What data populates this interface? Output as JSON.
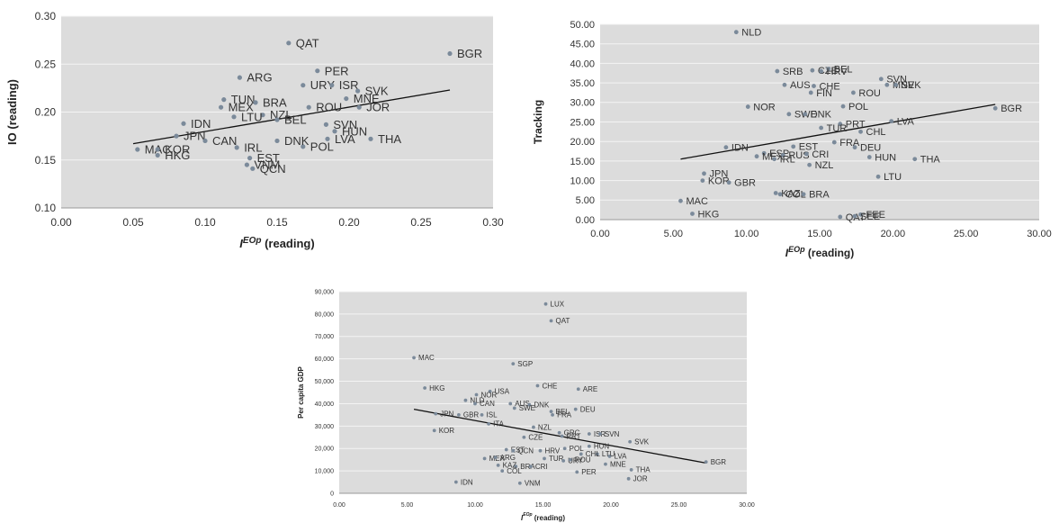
{
  "chart_data": [
    {
      "type": "scatter",
      "xlabel": "I^EOp (reading)",
      "ylabel": "IO (reading)",
      "xlim": [
        0,
        0.3
      ],
      "ylim": [
        0.1,
        0.3
      ],
      "xticks": [
        "0.00",
        "0.05",
        "0.10",
        "0.15",
        "0.20",
        "0.25",
        "0.30"
      ],
      "yticks": [
        "0.10",
        "0.15",
        "0.20",
        "0.25",
        "0.30"
      ],
      "grid": true,
      "trend": [
        [
          0.05,
          0.167
        ],
        [
          0.27,
          0.223
        ]
      ],
      "points": [
        {
          "label": "QAT",
          "x": 0.158,
          "y": 0.272
        },
        {
          "label": "BGR",
          "x": 0.27,
          "y": 0.261
        },
        {
          "label": "ARG",
          "x": 0.124,
          "y": 0.236
        },
        {
          "label": "PER",
          "x": 0.178,
          "y": 0.243
        },
        {
          "label": "URY",
          "x": 0.168,
          "y": 0.228
        },
        {
          "label": "ISR",
          "x": 0.188,
          "y": 0.228
        },
        {
          "label": "SVK",
          "x": 0.206,
          "y": 0.222
        },
        {
          "label": "MNE",
          "x": 0.198,
          "y": 0.214
        },
        {
          "label": "JOR",
          "x": 0.207,
          "y": 0.205
        },
        {
          "label": "TUN",
          "x": 0.113,
          "y": 0.213
        },
        {
          "label": "BRA",
          "x": 0.135,
          "y": 0.21
        },
        {
          "label": "MEX",
          "x": 0.111,
          "y": 0.205
        },
        {
          "label": "ROU",
          "x": 0.172,
          "y": 0.205
        },
        {
          "label": "NZL",
          "x": 0.14,
          "y": 0.197
        },
        {
          "label": "BEL",
          "x": 0.15,
          "y": 0.192
        },
        {
          "label": "SVN",
          "x": 0.184,
          "y": 0.187
        },
        {
          "label": "IDN",
          "x": 0.085,
          "y": 0.188
        },
        {
          "label": "LTU",
          "x": 0.12,
          "y": 0.195
        },
        {
          "label": "HUN",
          "x": 0.19,
          "y": 0.18
        },
        {
          "label": "LVA",
          "x": 0.185,
          "y": 0.172
        },
        {
          "label": "THA",
          "x": 0.215,
          "y": 0.172
        },
        {
          "label": "POL",
          "x": 0.168,
          "y": 0.164
        },
        {
          "label": "JPN",
          "x": 0.08,
          "y": 0.175
        },
        {
          "label": "CAN",
          "x": 0.1,
          "y": 0.17
        },
        {
          "label": "IRL",
          "x": 0.122,
          "y": 0.163
        },
        {
          "label": "DNK",
          "x": 0.15,
          "y": 0.17
        },
        {
          "label": "EST",
          "x": 0.131,
          "y": 0.152
        },
        {
          "label": "VNM",
          "x": 0.129,
          "y": 0.145
        },
        {
          "label": "QCN",
          "x": 0.133,
          "y": 0.141
        },
        {
          "label": "MAC",
          "x": 0.053,
          "y": 0.161
        },
        {
          "label": "KOR",
          "x": 0.067,
          "y": 0.161
        },
        {
          "label": "HKG",
          "x": 0.067,
          "y": 0.155
        }
      ]
    },
    {
      "type": "scatter",
      "xlabel": "I^EOp (reading)",
      "ylabel": "Tracking",
      "xlim": [
        0,
        30
      ],
      "ylim": [
        0,
        50
      ],
      "xticks": [
        "0.00",
        "5.00",
        "10.00",
        "15.00",
        "20.00",
        "25.00",
        "30.00"
      ],
      "yticks": [
        "0.00",
        "5.00",
        "10.00",
        "15.00",
        "20.00",
        "25.00",
        "30.00",
        "35.00",
        "40.00",
        "45.00",
        "50.00"
      ],
      "grid": true,
      "trend": [
        [
          5.5,
          15.5
        ],
        [
          27,
          29.5
        ]
      ],
      "points": [
        {
          "label": "NLD",
          "x": 9.3,
          "y": 48.0
        },
        {
          "label": "SRB",
          "x": 12.1,
          "y": 38.0
        },
        {
          "label": "CZE",
          "x": 14.5,
          "y": 38.2
        },
        {
          "label": "BEL",
          "x": 15.6,
          "y": 38.6
        },
        {
          "label": "HRV",
          "x": 15.1,
          "y": 38.0
        },
        {
          "label": "SVN",
          "x": 19.2,
          "y": 36.0
        },
        {
          "label": "MNE",
          "x": 19.6,
          "y": 34.5
        },
        {
          "label": "SVK",
          "x": 20.2,
          "y": 34.5
        },
        {
          "label": "AUS",
          "x": 12.6,
          "y": 34.5
        },
        {
          "label": "CHE",
          "x": 14.6,
          "y": 34.2
        },
        {
          "label": "FIN",
          "x": 14.4,
          "y": 32.5
        },
        {
          "label": "ROU",
          "x": 17.3,
          "y": 32.5
        },
        {
          "label": "NOR",
          "x": 10.1,
          "y": 28.9
        },
        {
          "label": "SWE",
          "x": 12.9,
          "y": 27.0
        },
        {
          "label": "DNK",
          "x": 14.0,
          "y": 27.0
        },
        {
          "label": "POL",
          "x": 16.6,
          "y": 29.0
        },
        {
          "label": "PRT",
          "x": 16.4,
          "y": 24.5
        },
        {
          "label": "TUR",
          "x": 15.1,
          "y": 23.5
        },
        {
          "label": "LVA",
          "x": 19.9,
          "y": 25.2
        },
        {
          "label": "CHL",
          "x": 17.8,
          "y": 22.5
        },
        {
          "label": "BGR",
          "x": 27.0,
          "y": 28.5
        },
        {
          "label": "IDN",
          "x": 8.6,
          "y": 18.5
        },
        {
          "label": "EST",
          "x": 13.2,
          "y": 18.7
        },
        {
          "label": "ESP",
          "x": 11.2,
          "y": 17.0
        },
        {
          "label": "FRA",
          "x": 16.0,
          "y": 19.8
        },
        {
          "label": "DEU",
          "x": 17.4,
          "y": 18.5
        },
        {
          "label": "MEX",
          "x": 10.7,
          "y": 16.2
        },
        {
          "label": "RUS",
          "x": 12.5,
          "y": 16.5
        },
        {
          "label": "CRI",
          "x": 14.1,
          "y": 16.8
        },
        {
          "label": "IRL",
          "x": 11.9,
          "y": 15.5
        },
        {
          "label": "HUN",
          "x": 18.4,
          "y": 16.0
        },
        {
          "label": "THA",
          "x": 21.5,
          "y": 15.5
        },
        {
          "label": "NZL",
          "x": 14.3,
          "y": 14.0
        },
        {
          "label": "JPN",
          "x": 7.1,
          "y": 11.8
        },
        {
          "label": "KOR",
          "x": 7.0,
          "y": 10.0
        },
        {
          "label": "GBR",
          "x": 8.8,
          "y": 9.5
        },
        {
          "label": "LTU",
          "x": 19.0,
          "y": 11.0
        },
        {
          "label": "KAZ",
          "x": 12.0,
          "y": 6.8
        },
        {
          "label": "COL",
          "x": 12.3,
          "y": 6.5
        },
        {
          "label": "BRA",
          "x": 13.9,
          "y": 6.5
        },
        {
          "label": "MAC",
          "x": 5.5,
          "y": 4.8
        },
        {
          "label": "HKG",
          "x": 6.3,
          "y": 1.5
        },
        {
          "label": "QAT",
          "x": 16.4,
          "y": 0.7
        },
        {
          "label": "FEE",
          "x": 17.8,
          "y": 1.3
        },
        {
          "label": "SEE",
          "x": 17.4,
          "y": 0.9
        }
      ]
    },
    {
      "type": "scatter",
      "xlabel": "I^EOp (reading)",
      "ylabel": "Per capita GDP",
      "xlim": [
        0,
        30
      ],
      "ylim": [
        0,
        90000
      ],
      "xticks": [
        "0.00",
        "5.00",
        "10.00",
        "15.00",
        "20.00",
        "25.00",
        "30.00"
      ],
      "yticks": [
        "0",
        "10,000",
        "20,000",
        "30,000",
        "40,000",
        "50,000",
        "60,000",
        "70,000",
        "80,000",
        "90,000"
      ],
      "grid": true,
      "trend": [
        [
          5.5,
          37500
        ],
        [
          27,
          13500
        ]
      ],
      "points": [
        {
          "label": "LUX",
          "x": 15.2,
          "y": 84500
        },
        {
          "label": "QAT",
          "x": 15.6,
          "y": 77000
        },
        {
          "label": "MAC",
          "x": 5.5,
          "y": 60500
        },
        {
          "label": "SGP",
          "x": 12.8,
          "y": 57800
        },
        {
          "label": "HKG",
          "x": 6.3,
          "y": 47000
        },
        {
          "label": "CHE",
          "x": 14.6,
          "y": 48000
        },
        {
          "label": "ARE",
          "x": 17.6,
          "y": 46500
        },
        {
          "label": "USA",
          "x": 11.1,
          "y": 45500
        },
        {
          "label": "NOR",
          "x": 10.1,
          "y": 44000
        },
        {
          "label": "NLD",
          "x": 9.3,
          "y": 41500
        },
        {
          "label": "CAN",
          "x": 10.0,
          "y": 40000
        },
        {
          "label": "AUS",
          "x": 12.6,
          "y": 40000
        },
        {
          "label": "DNK",
          "x": 14.0,
          "y": 39500
        },
        {
          "label": "SWE",
          "x": 12.9,
          "y": 38000
        },
        {
          "label": "BEL",
          "x": 15.6,
          "y": 36500
        },
        {
          "label": "DEU",
          "x": 17.4,
          "y": 37500
        },
        {
          "label": "FRA",
          "x": 15.7,
          "y": 35000
        },
        {
          "label": "JPN",
          "x": 7.1,
          "y": 35500
        },
        {
          "label": "GBR",
          "x": 8.8,
          "y": 35000
        },
        {
          "label": "ISL",
          "x": 10.5,
          "y": 35000
        },
        {
          "label": "ITA",
          "x": 11.0,
          "y": 31000
        },
        {
          "label": "NZL",
          "x": 14.3,
          "y": 29500
        },
        {
          "label": "KOR",
          "x": 7.0,
          "y": 28000
        },
        {
          "label": "GRC",
          "x": 16.2,
          "y": 27000
        },
        {
          "label": "PRT",
          "x": 16.4,
          "y": 25500
        },
        {
          "label": "ISR",
          "x": 18.4,
          "y": 26500
        },
        {
          "label": "SVN",
          "x": 19.2,
          "y": 26500
        },
        {
          "label": "CZE",
          "x": 13.6,
          "y": 25000
        },
        {
          "label": "SVK",
          "x": 21.4,
          "y": 23000
        },
        {
          "label": "HUN",
          "x": 18.4,
          "y": 21000
        },
        {
          "label": "POL",
          "x": 16.6,
          "y": 20000
        },
        {
          "label": "EST",
          "x": 12.3,
          "y": 19500
        },
        {
          "label": "LVA",
          "x": 19.9,
          "y": 16500
        },
        {
          "label": "LTU",
          "x": 19.0,
          "y": 17500
        },
        {
          "label": "CHL",
          "x": 17.8,
          "y": 17500
        },
        {
          "label": "HRV",
          "x": 14.8,
          "y": 19000
        },
        {
          "label": "QCN",
          "x": 12.8,
          "y": 19000
        },
        {
          "label": "TUR",
          "x": 15.1,
          "y": 15500
        },
        {
          "label": "URY",
          "x": 16.5,
          "y": 14500
        },
        {
          "label": "ROU",
          "x": 17.0,
          "y": 15000
        },
        {
          "label": "MNE",
          "x": 19.6,
          "y": 13000
        },
        {
          "label": "MEX",
          "x": 10.7,
          "y": 15500
        },
        {
          "label": "ARG",
          "x": 11.5,
          "y": 16000
        },
        {
          "label": "BRA",
          "x": 13.0,
          "y": 12000
        },
        {
          "label": "KAZ",
          "x": 11.7,
          "y": 12500
        },
        {
          "label": "CRI",
          "x": 14.1,
          "y": 12000
        },
        {
          "label": "COL",
          "x": 12.0,
          "y": 10000
        },
        {
          "label": "PER",
          "x": 17.5,
          "y": 9500
        },
        {
          "label": "THA",
          "x": 21.5,
          "y": 10500
        },
        {
          "label": "JOR",
          "x": 21.3,
          "y": 6500
        },
        {
          "label": "BGR",
          "x": 27.0,
          "y": 14000
        },
        {
          "label": "IDN",
          "x": 8.6,
          "y": 5000
        },
        {
          "label": "VNM",
          "x": 13.3,
          "y": 4500
        }
      ]
    }
  ]
}
